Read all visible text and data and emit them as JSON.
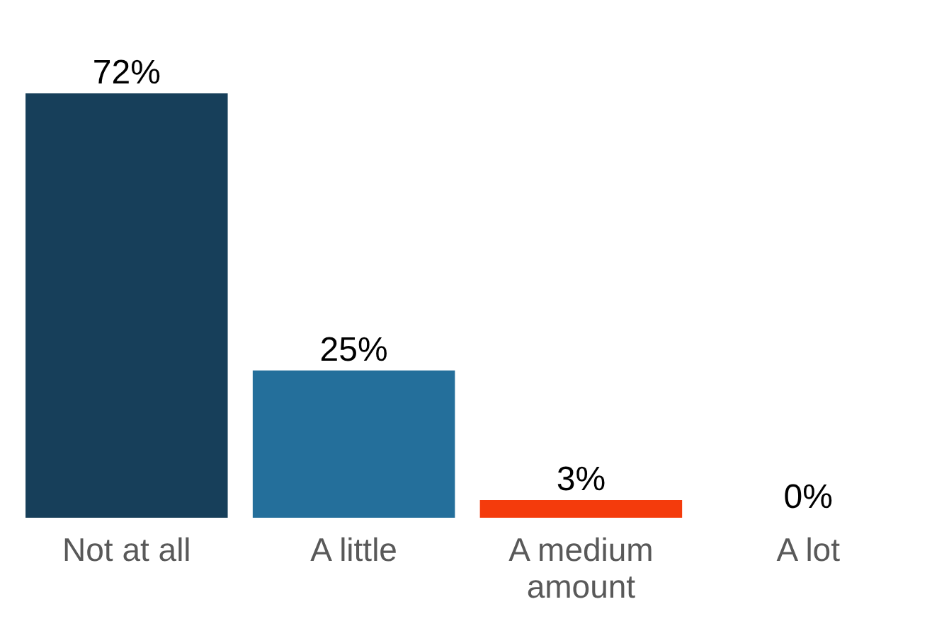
{
  "chart_data": {
    "type": "bar",
    "categories": [
      "Not at all",
      "A little",
      "A medium amount",
      "A lot"
    ],
    "values": [
      72,
      25,
      3,
      0
    ],
    "value_labels": [
      "72%",
      "25%",
      "3%",
      "0%"
    ],
    "colors": [
      "#173f5a",
      "#246f9b",
      "#f43b0c",
      "#f43b0c"
    ]
  }
}
